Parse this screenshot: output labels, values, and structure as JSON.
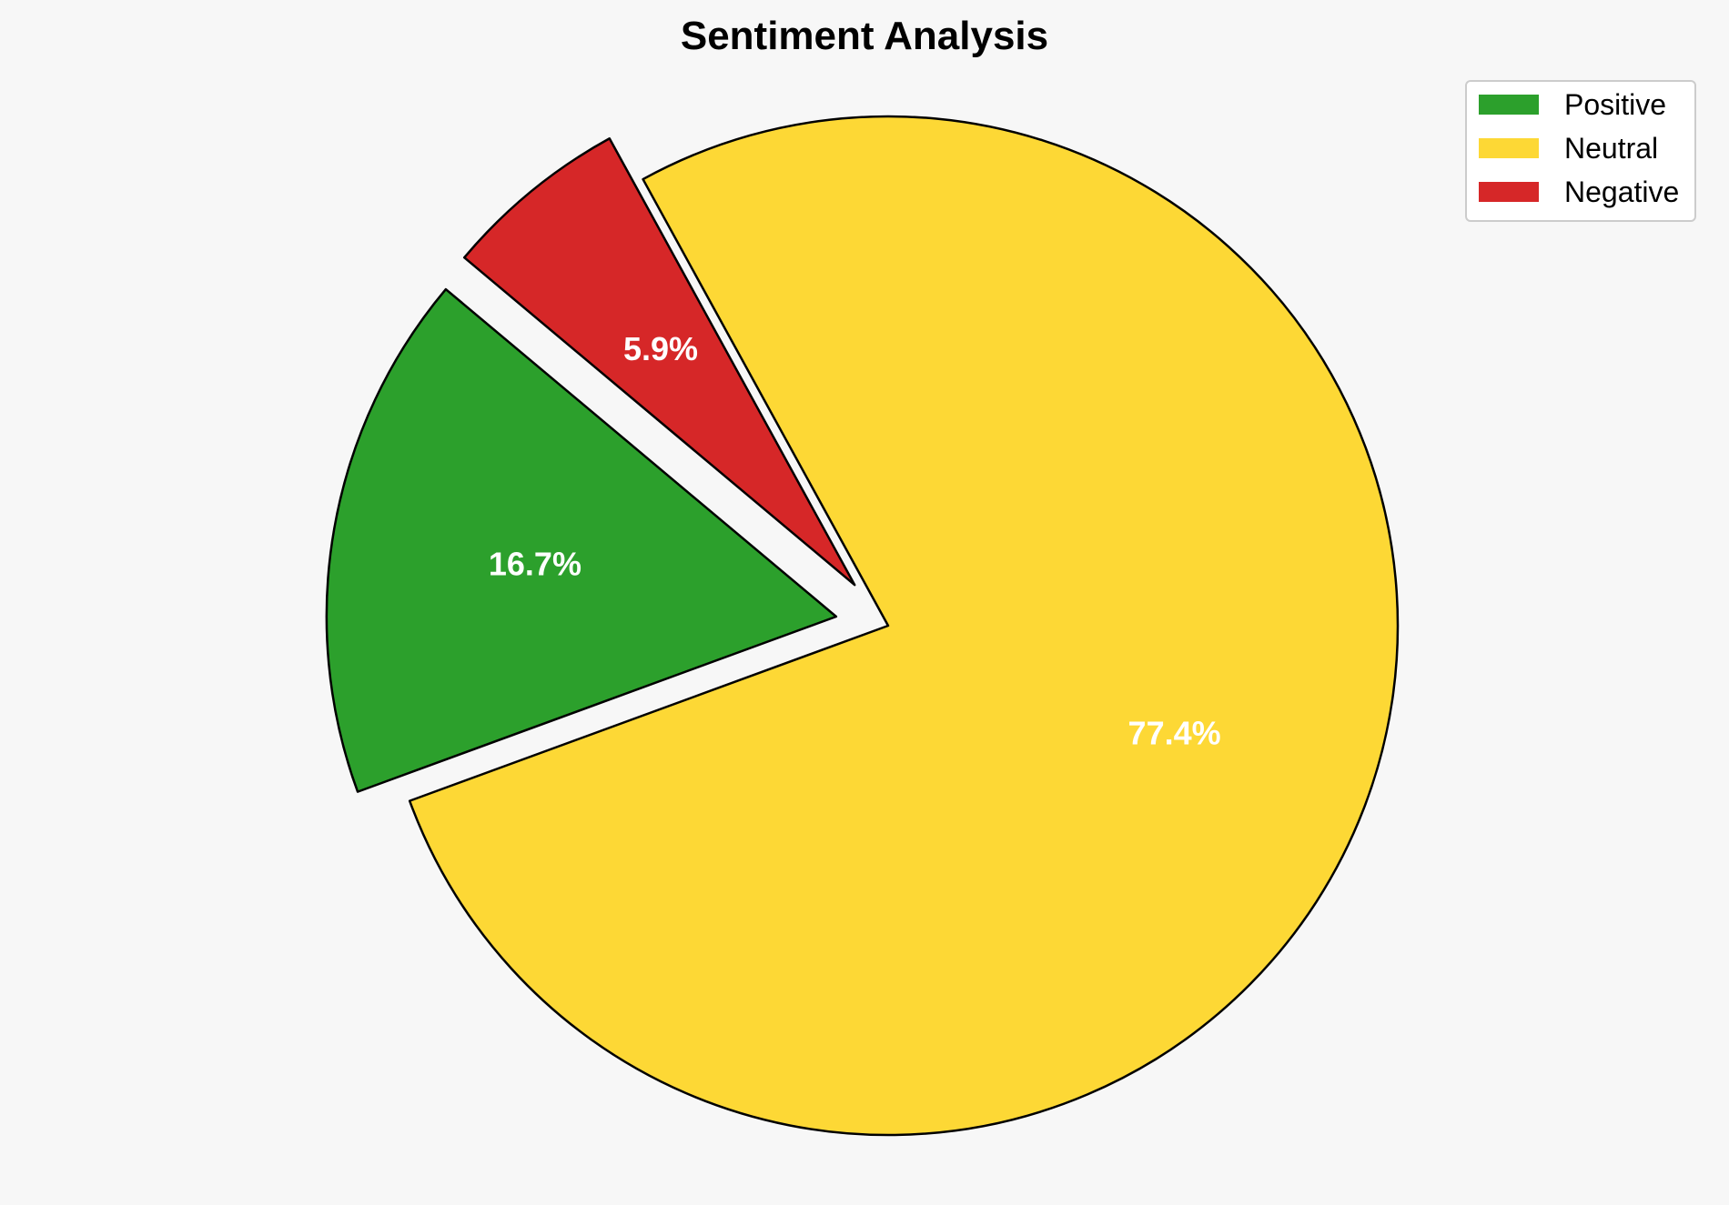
{
  "chart_data": {
    "type": "pie",
    "title": "Sentiment Analysis",
    "slices": [
      {
        "label": "Positive",
        "value": 16.7,
        "display": "16.7%",
        "color": "#2ca02c",
        "exploded": true
      },
      {
        "label": "Neutral",
        "value": 77.4,
        "display": "77.4%",
        "color": "#fdd835",
        "exploded": false
      },
      {
        "label": "Negative",
        "value": 5.9,
        "display": "5.9%",
        "color": "#d62728",
        "exploded": true
      }
    ],
    "legend_position": "top-right",
    "slice_edge_color": "#000000",
    "label_color": "#ffffff"
  }
}
